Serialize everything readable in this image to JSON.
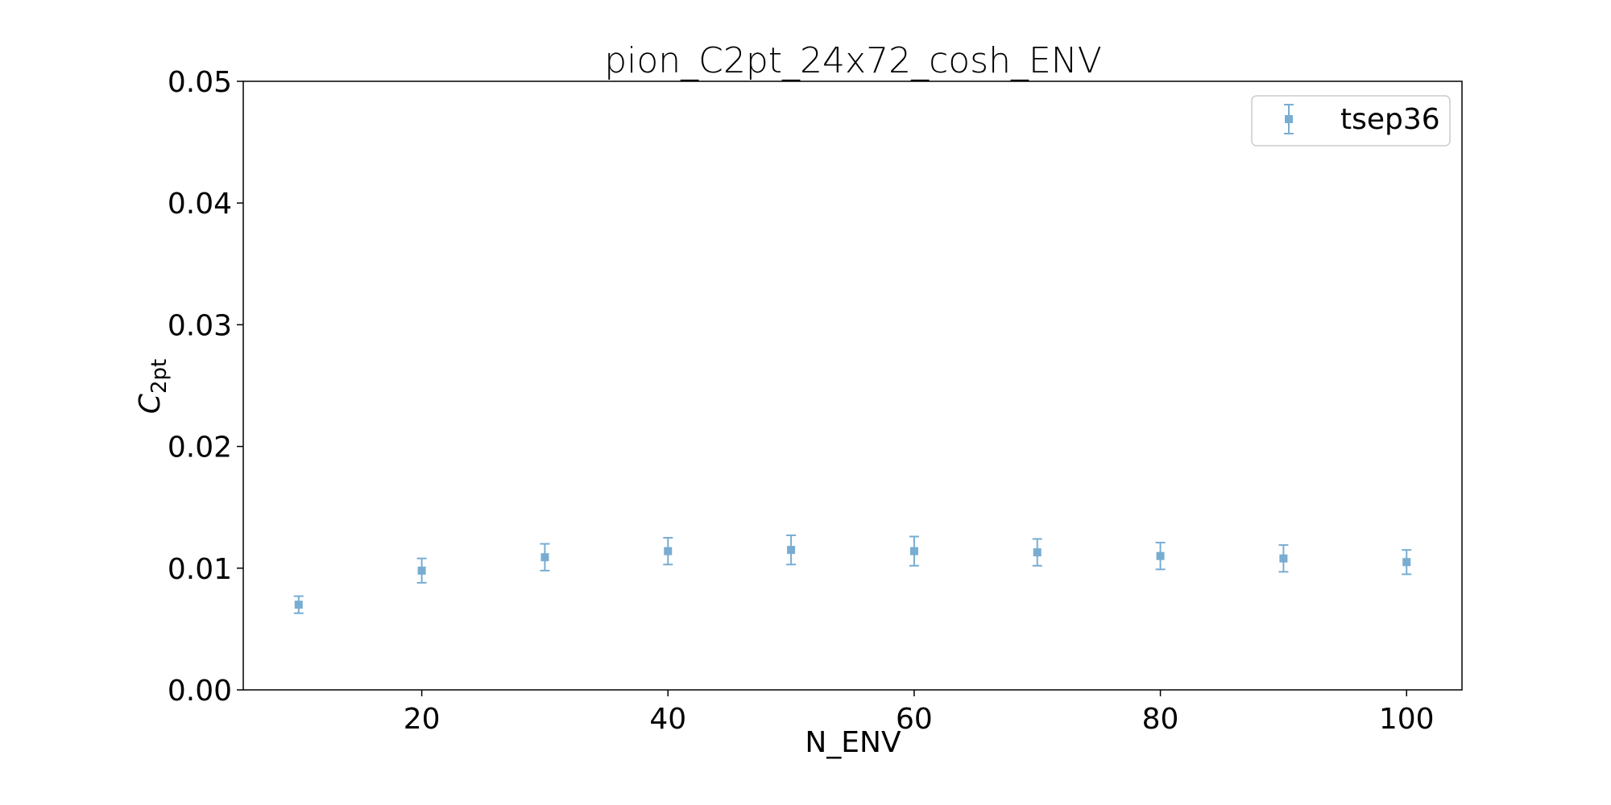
{
  "chart_data": {
    "type": "scatter",
    "title": "pion_C2pt_24x72_cosh_ENV",
    "xlabel": "N_ENV",
    "ylabel_main": "C",
    "ylabel_sub": "2pt",
    "xlim": [
      5.5,
      104.5
    ],
    "ylim": [
      0.0,
      0.05
    ],
    "x_ticks": [
      20,
      40,
      60,
      80,
      100
    ],
    "y_ticks": [
      0.0,
      0.01,
      0.02,
      0.03,
      0.04,
      0.05
    ],
    "y_tick_labels": [
      "0.00",
      "0.01",
      "0.02",
      "0.03",
      "0.04",
      "0.05"
    ],
    "grid": false,
    "legend_position": "top-right",
    "series": [
      {
        "name": "tsep36",
        "color": "#1f77b4",
        "marker": "square",
        "x": [
          10,
          20,
          30,
          40,
          50,
          60,
          70,
          80,
          90,
          100
        ],
        "y": [
          0.007,
          0.0098,
          0.0109,
          0.0114,
          0.0115,
          0.0114,
          0.0113,
          0.011,
          0.0108,
          0.0105
        ],
        "yerr": [
          0.0007,
          0.001,
          0.0011,
          0.0011,
          0.0012,
          0.0012,
          0.0011,
          0.0011,
          0.0011,
          0.001
        ]
      }
    ]
  }
}
